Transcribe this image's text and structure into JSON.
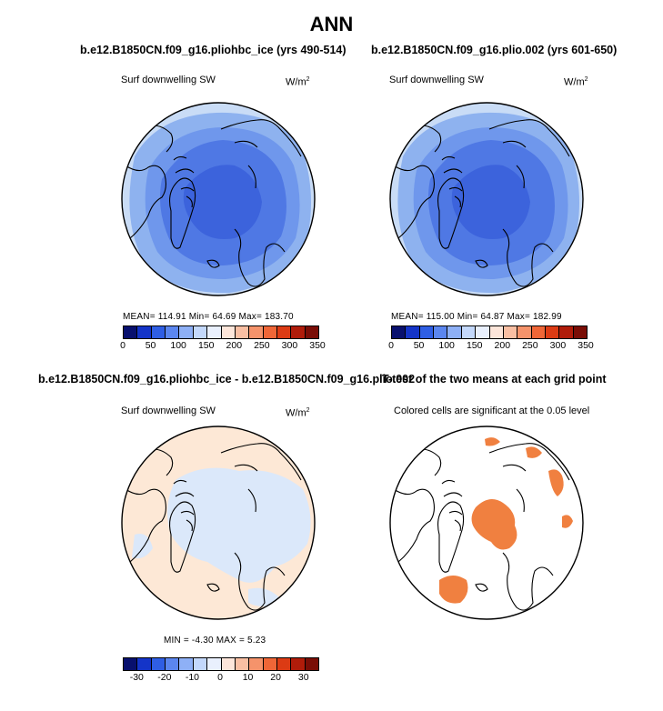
{
  "page_title": "ANN",
  "panels": [
    {
      "title": "b.e12.B1850CN.f09_g16.pliohbc_ice (yrs 490-514)",
      "variable": "Surf downwelling SW",
      "units_base": "W/m",
      "units_exp": "2",
      "stats": "MEAN= 114.91   Min=   64.69   Max= 183.70"
    },
    {
      "title": "b.e12.B1850CN.f09_g16.plio.002 (yrs 601-650)",
      "variable": "Surf downwelling SW",
      "units_base": "W/m",
      "units_exp": "2",
      "stats": "MEAN= 115.00   Min=   64.87   Max= 182.99"
    },
    {
      "title": "b.e12.B1850CN.f09_g16.pliohbc_ice - b.e12.B1850CN.f09_g16.plio.002",
      "variable": "Surf downwelling SW",
      "units_base": "W/m",
      "units_exp": "2",
      "stats": "MIN  =   -4.30  MAX  =     5.23"
    },
    {
      "title": "T-test of the two means at each grid point",
      "variable": "Colored cells are significant at the 0.05 level"
    }
  ],
  "colorbar_abs": {
    "ticks": [
      "0",
      "50",
      "100",
      "150",
      "200",
      "250",
      "300",
      "350"
    ],
    "colors": [
      "#08106e",
      "#1434c8",
      "#2f5ee4",
      "#5b86ef",
      "#8eb0f6",
      "#c3d8fb",
      "#e9f0fd",
      "#fde6da",
      "#f9bfa3",
      "#f5936b",
      "#ef6637",
      "#dc3b14",
      "#b01c0a",
      "#7a0d06"
    ]
  },
  "colorbar_diff": {
    "ticks": [
      "-30",
      "-20",
      "-10",
      "0",
      "10",
      "20",
      "30"
    ],
    "colors": [
      "#08106e",
      "#1434c8",
      "#2f5ee4",
      "#5b86ef",
      "#8eb0f6",
      "#c3d8fb",
      "#e9f0fd",
      "#fde6da",
      "#f9bfa3",
      "#f5936b",
      "#ef6637",
      "#dc3b14",
      "#b01c0a",
      "#7a0d06"
    ]
  },
  "map_colors": {
    "outer": "#c9dcf6",
    "ring": "#8eb2ef",
    "mid": "#6f97ec",
    "core": "#4f78e4",
    "deep": "#3c63dc",
    "diff_neg": "#dbe8fa",
    "diff_pos": "#fde8d6",
    "sig": "#f08040"
  }
}
